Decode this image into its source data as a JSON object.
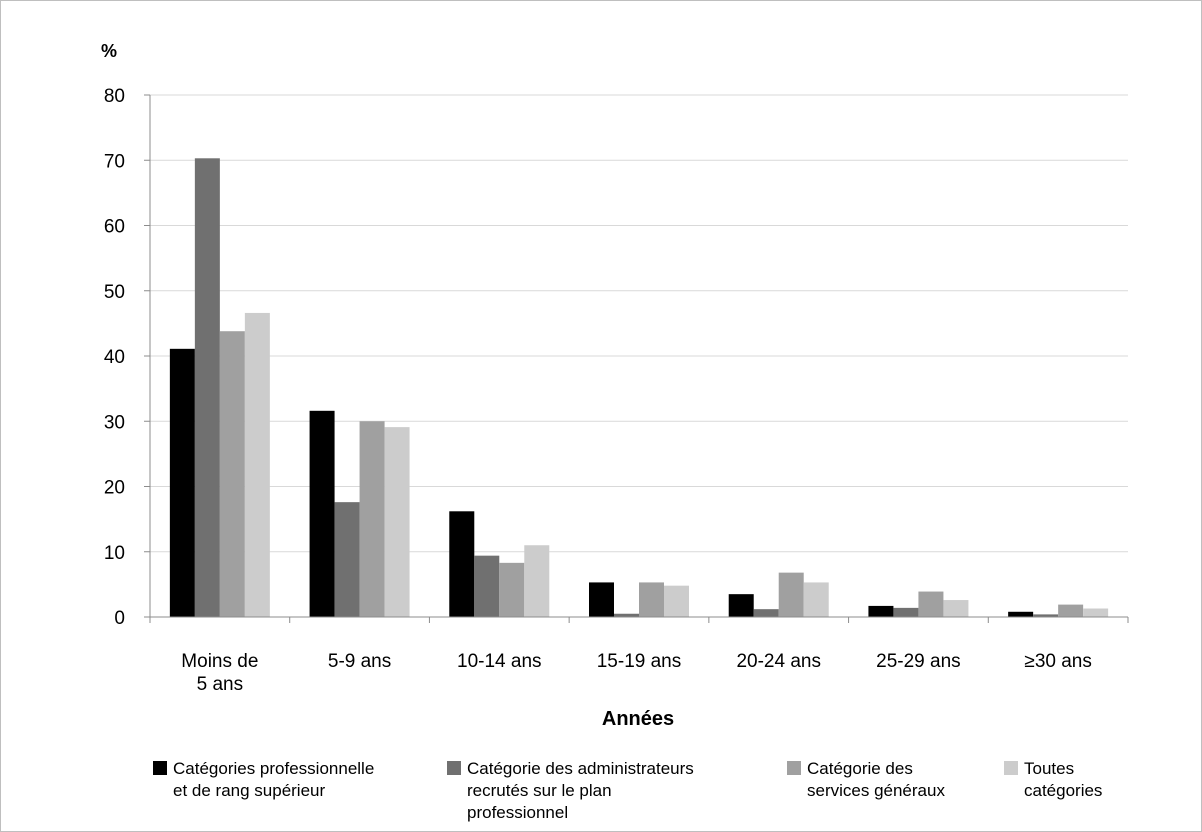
{
  "chart_data": {
    "type": "bar",
    "ylabel": "%",
    "xlabel": "Années",
    "ylim": [
      0,
      80
    ],
    "yticks": [
      0,
      10,
      20,
      30,
      40,
      50,
      60,
      70,
      80
    ],
    "grid": true,
    "legend_position": "bottom",
    "categories": [
      [
        "Moins de",
        "5 ans"
      ],
      [
        "5-9 ans"
      ],
      [
        "10-14 ans"
      ],
      [
        "15-19 ans"
      ],
      [
        "20-24 ans"
      ],
      [
        "25-29 ans"
      ],
      [
        "≥30 ans"
      ]
    ],
    "series": [
      {
        "name": [
          "Catégories professionnelle",
          "et de rang supérieur"
        ],
        "color": "#000000",
        "values": [
          41.1,
          31.6,
          16.2,
          5.3,
          3.5,
          1.7,
          0.8
        ]
      },
      {
        "name": [
          "Catégorie des administrateurs",
          "recrutés sur le plan",
          "professionnel"
        ],
        "color": "#707070",
        "values": [
          70.3,
          17.6,
          9.4,
          0.5,
          1.2,
          1.4,
          0.4
        ]
      },
      {
        "name": [
          "Catégorie des",
          "services généraux"
        ],
        "color": "#a0a0a0",
        "values": [
          43.8,
          30.0,
          8.3,
          5.3,
          6.8,
          3.9,
          1.9
        ]
      },
      {
        "name": [
          "Toutes",
          "catégories"
        ],
        "color": "#cccccc",
        "values": [
          46.6,
          29.1,
          11.0,
          4.8,
          5.3,
          2.6,
          1.3
        ]
      }
    ]
  }
}
